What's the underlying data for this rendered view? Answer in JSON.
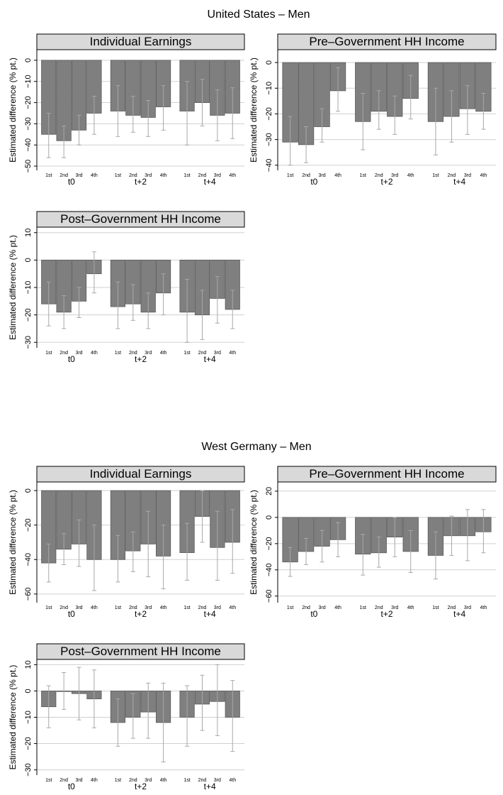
{
  "sections": [
    {
      "title": "United States – Men"
    },
    {
      "title": "West Germany – Men"
    }
  ],
  "colors": {
    "bar": "#7f7f7f",
    "bar_outline": "#5a5a5a",
    "strip": "#d9d9d9",
    "grid": "#d0d0d0",
    "error_bar": "#a8a8a8"
  },
  "chart_data": [
    {
      "type": "bar",
      "section": 0,
      "title": "Individual Earnings",
      "ylabel": "Estimated difference (% pt.)",
      "groups": [
        "t0",
        "t+2",
        "t+4"
      ],
      "categories": [
        "1st",
        "2nd",
        "3rd",
        "4th"
      ],
      "ylim": [
        -52,
        5
      ],
      "yticks": [
        0,
        -10,
        -20,
        -30,
        -40,
        -50
      ],
      "ytick_labels": [
        "0",
        "−10",
        "−20",
        "−30",
        "−40",
        "−50"
      ],
      "ytick_rotation": "vertical",
      "grid": true,
      "values": [
        [
          -35,
          -38,
          -33,
          -25
        ],
        [
          -24,
          -26,
          -27,
          -22
        ],
        [
          -24,
          -20,
          -26,
          -25
        ]
      ],
      "ci_low": [
        [
          -46,
          -46,
          -40,
          -35
        ],
        [
          -36,
          -34,
          -36,
          -33
        ],
        [
          -40,
          -31,
          -38,
          -37
        ]
      ],
      "ci_high": [
        [
          -25,
          -31,
          -26,
          -17
        ],
        [
          -12,
          -17,
          -19,
          -12
        ],
        [
          -10,
          -9,
          -14,
          -13
        ]
      ]
    },
    {
      "type": "bar",
      "section": 0,
      "title": "Pre–Government HH Income",
      "ylabel": "Estimated difference (% pt.)",
      "groups": [
        "t0",
        "t+2",
        "t+4"
      ],
      "categories": [
        "1st",
        "2nd",
        "3rd",
        "4th"
      ],
      "ylim": [
        -42,
        5
      ],
      "yticks": [
        0,
        -10,
        -20,
        -30,
        -40
      ],
      "ytick_labels": [
        "0",
        "−10",
        "−20",
        "−30",
        "−40"
      ],
      "ytick_rotation": "vertical",
      "grid": true,
      "values": [
        [
          -31,
          -32,
          -25,
          -11
        ],
        [
          -23,
          -19,
          -21,
          -14
        ],
        [
          -23,
          -21,
          -18,
          -19
        ]
      ],
      "ci_low": [
        [
          -40,
          -39,
          -31,
          -19
        ],
        [
          -34,
          -26,
          -28,
          -22
        ],
        [
          -36,
          -31,
          -28,
          -26
        ]
      ],
      "ci_high": [
        [
          -21,
          -25,
          -18,
          -2
        ],
        [
          -12,
          -11,
          -13,
          -5
        ],
        [
          -10,
          -11,
          -9,
          -12
        ]
      ]
    },
    {
      "type": "bar",
      "section": 0,
      "title": "Post–Government HH Income",
      "ylabel": "Estimated difference (% pt.)",
      "groups": [
        "t0",
        "t+2",
        "t+4"
      ],
      "categories": [
        "1st",
        "2nd",
        "3rd",
        "4th"
      ],
      "ylim": [
        -32,
        12
      ],
      "yticks": [
        10,
        0,
        -10,
        -20,
        -30
      ],
      "ytick_labels": [
        "10",
        "0",
        "−10",
        "−20",
        "−30"
      ],
      "ytick_rotation": "vertical",
      "grid": true,
      "values": [
        [
          -16,
          -19,
          -15,
          -5
        ],
        [
          -17,
          -16,
          -19,
          -12
        ],
        [
          -19,
          -20,
          -14,
          -18
        ]
      ],
      "ci_low": [
        [
          -24,
          -25,
          -21,
          -12
        ],
        [
          -25,
          -22,
          -25,
          -20
        ],
        [
          -30,
          -29,
          -23,
          -25
        ]
      ],
      "ci_high": [
        [
          -8,
          -13,
          -10,
          3
        ],
        [
          -8,
          -9,
          -12,
          -5
        ],
        [
          -7,
          -11,
          -6,
          -11
        ]
      ]
    },
    {
      "type": "bar",
      "section": 1,
      "title": "Individual Earnings",
      "ylabel": "Estimated difference (% pt.)",
      "groups": [
        "t0",
        "t+2",
        "t+4"
      ],
      "categories": [
        "1st",
        "2nd",
        "3rd",
        "4th"
      ],
      "ylim": [
        -65,
        5
      ],
      "yticks": [
        0,
        -20,
        -40,
        -60
      ],
      "ytick_labels": [
        "0",
        "−20",
        "−40",
        "−60"
      ],
      "ytick_rotation": "vertical",
      "grid": true,
      "values": [
        [
          -42,
          -34,
          -31,
          -40
        ],
        [
          -40,
          -35,
          -31,
          -38
        ],
        [
          -36,
          -15,
          -33,
          -30
        ]
      ],
      "ci_low": [
        [
          -53,
          -43,
          -44,
          -58
        ],
        [
          -53,
          -47,
          -50,
          -57
        ],
        [
          -52,
          -30,
          -52,
          -48
        ]
      ],
      "ci_high": [
        [
          -31,
          -25,
          -17,
          -20
        ],
        [
          -26,
          -24,
          -12,
          -20
        ],
        [
          -19,
          0,
          -12,
          -11
        ]
      ]
    },
    {
      "type": "bar",
      "section": 1,
      "title": "Pre–Government HH Income",
      "ylabel": "Estimated difference (% pt.)",
      "groups": [
        "t0",
        "t+2",
        "t+4"
      ],
      "categories": [
        "1st",
        "2nd",
        "3rd",
        "4th"
      ],
      "ylim": [
        -65,
        27
      ],
      "yticks": [
        20,
        0,
        -20,
        -40,
        -60
      ],
      "ytick_labels": [
        "20",
        "0",
        "−20",
        "−40",
        "−60"
      ],
      "ytick_rotation": "vertical",
      "grid": true,
      "values": [
        [
          -34,
          -26,
          -22,
          -17
        ],
        [
          -28,
          -27,
          -15,
          -26
        ],
        [
          -29,
          -14,
          -14,
          -11
        ]
      ],
      "ci_low": [
        [
          -45,
          -36,
          -34,
          -30
        ],
        [
          -44,
          -38,
          -30,
          -42
        ],
        [
          -47,
          -29,
          -33,
          -27
        ]
      ],
      "ci_high": [
        [
          -23,
          -16,
          -10,
          -4
        ],
        [
          -13,
          -15,
          0,
          -10
        ],
        [
          -11,
          1,
          6,
          6
        ]
      ]
    },
    {
      "type": "bar",
      "section": 1,
      "title": "Post–Government HH Income",
      "ylabel": "Estimated difference (% pt.)",
      "groups": [
        "t0",
        "t+2",
        "t+4"
      ],
      "categories": [
        "1st",
        "2nd",
        "3rd",
        "4th"
      ],
      "ylim": [
        -32,
        12
      ],
      "yticks": [
        10,
        0,
        -10,
        -20,
        -30
      ],
      "ytick_labels": [
        "10",
        "0",
        "−10",
        "−20",
        "−30"
      ],
      "ytick_rotation": "vertical",
      "grid": true,
      "values": [
        [
          -6,
          0,
          -1,
          -3
        ],
        [
          -12,
          -10,
          -8,
          -12
        ],
        [
          -10,
          -5,
          -4,
          -10
        ]
      ],
      "ci_low": [
        [
          -14,
          -7,
          -11,
          -14
        ],
        [
          -21,
          -18,
          -18,
          -27
        ],
        [
          -21,
          -15,
          -17,
          -23
        ]
      ],
      "ci_high": [
        [
          2,
          7,
          9,
          8
        ],
        [
          -3,
          -1,
          3,
          3
        ],
        [
          2,
          6,
          10,
          4
        ]
      ]
    }
  ]
}
